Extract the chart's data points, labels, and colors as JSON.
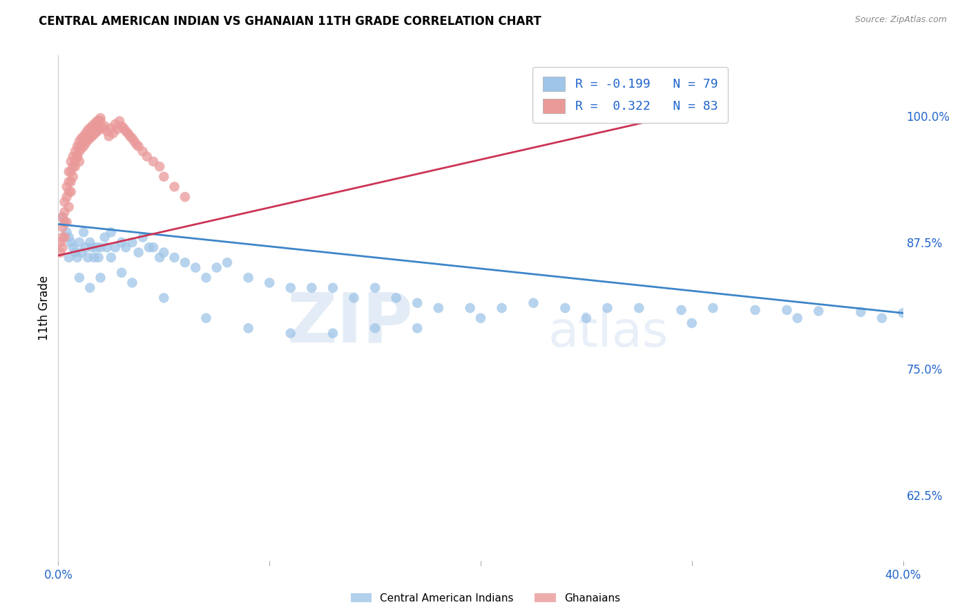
{
  "title": "CENTRAL AMERICAN INDIAN VS GHANAIAN 11TH GRADE CORRELATION CHART",
  "source": "Source: ZipAtlas.com",
  "ylabel": "11th Grade",
  "ytick_labels": [
    "62.5%",
    "75.0%",
    "87.5%",
    "100.0%"
  ],
  "ytick_values": [
    0.625,
    0.75,
    0.875,
    1.0
  ],
  "xlim": [
    0.0,
    0.4
  ],
  "ylim": [
    0.56,
    1.06
  ],
  "legend_label_blue": "Central American Indians",
  "legend_label_pink": "Ghanaians",
  "blue_color": "#9fc5e8",
  "pink_color": "#ea9999",
  "blue_line_color": "#3d85c8",
  "pink_line_color": "#cc3355",
  "watermark_zip": "ZIP",
  "watermark_atlas": "atlas",
  "blue_line_x": [
    0.0,
    0.4
  ],
  "blue_line_y": [
    0.893,
    0.805
  ],
  "pink_line_x": [
    0.0,
    0.295
  ],
  "pink_line_y": [
    0.862,
    1.002
  ],
  "blue_points_x": [
    0.002,
    0.003,
    0.004,
    0.005,
    0.006,
    0.007,
    0.008,
    0.009,
    0.01,
    0.011,
    0.012,
    0.013,
    0.014,
    0.015,
    0.016,
    0.017,
    0.018,
    0.019,
    0.02,
    0.022,
    0.023,
    0.025,
    0.027,
    0.03,
    0.032,
    0.035,
    0.038,
    0.04,
    0.043,
    0.045,
    0.048,
    0.05,
    0.055,
    0.06,
    0.065,
    0.07,
    0.075,
    0.08,
    0.09,
    0.1,
    0.11,
    0.12,
    0.13,
    0.14,
    0.15,
    0.16,
    0.17,
    0.18,
    0.195,
    0.21,
    0.225,
    0.24,
    0.26,
    0.275,
    0.295,
    0.31,
    0.33,
    0.345,
    0.36,
    0.38,
    0.4,
    0.005,
    0.01,
    0.015,
    0.02,
    0.025,
    0.03,
    0.035,
    0.05,
    0.07,
    0.09,
    0.11,
    0.13,
    0.15,
    0.17,
    0.2,
    0.25,
    0.3,
    0.35,
    0.39
  ],
  "blue_points_y": [
    0.9,
    0.895,
    0.885,
    0.88,
    0.875,
    0.87,
    0.865,
    0.86,
    0.875,
    0.865,
    0.885,
    0.87,
    0.86,
    0.875,
    0.87,
    0.86,
    0.87,
    0.86,
    0.87,
    0.88,
    0.87,
    0.885,
    0.87,
    0.875,
    0.87,
    0.875,
    0.865,
    0.88,
    0.87,
    0.87,
    0.86,
    0.865,
    0.86,
    0.855,
    0.85,
    0.84,
    0.85,
    0.855,
    0.84,
    0.835,
    0.83,
    0.83,
    0.83,
    0.82,
    0.83,
    0.82,
    0.815,
    0.81,
    0.81,
    0.81,
    0.815,
    0.81,
    0.81,
    0.81,
    0.808,
    0.81,
    0.808,
    0.808,
    0.807,
    0.806,
    0.805,
    0.86,
    0.84,
    0.83,
    0.84,
    0.86,
    0.845,
    0.835,
    0.82,
    0.8,
    0.79,
    0.785,
    0.785,
    0.79,
    0.79,
    0.8,
    0.8,
    0.795,
    0.8,
    0.8
  ],
  "pink_points_x": [
    0.001,
    0.001,
    0.002,
    0.002,
    0.002,
    0.003,
    0.003,
    0.003,
    0.004,
    0.004,
    0.005,
    0.005,
    0.005,
    0.006,
    0.006,
    0.006,
    0.007,
    0.007,
    0.008,
    0.008,
    0.009,
    0.009,
    0.01,
    0.01,
    0.01,
    0.011,
    0.011,
    0.012,
    0.012,
    0.013,
    0.013,
    0.014,
    0.014,
    0.015,
    0.015,
    0.016,
    0.016,
    0.017,
    0.017,
    0.018,
    0.018,
    0.019,
    0.019,
    0.02,
    0.021,
    0.022,
    0.023,
    0.024,
    0.025,
    0.026,
    0.027,
    0.028,
    0.029,
    0.03,
    0.031,
    0.032,
    0.033,
    0.034,
    0.035,
    0.036,
    0.037,
    0.038,
    0.04,
    0.042,
    0.045,
    0.048,
    0.05,
    0.055,
    0.06,
    0.002,
    0.003,
    0.004,
    0.005,
    0.006,
    0.007,
    0.008,
    0.009,
    0.01,
    0.012,
    0.014,
    0.016,
    0.018,
    0.02
  ],
  "pink_points_y": [
    0.875,
    0.865,
    0.9,
    0.89,
    0.88,
    0.915,
    0.905,
    0.895,
    0.93,
    0.92,
    0.945,
    0.935,
    0.925,
    0.955,
    0.945,
    0.935,
    0.96,
    0.95,
    0.965,
    0.955,
    0.97,
    0.96,
    0.975,
    0.965,
    0.955,
    0.978,
    0.968,
    0.98,
    0.97,
    0.983,
    0.973,
    0.986,
    0.976,
    0.988,
    0.978,
    0.99,
    0.98,
    0.992,
    0.982,
    0.994,
    0.984,
    0.996,
    0.986,
    0.998,
    0.988,
    0.99,
    0.985,
    0.98,
    0.988,
    0.983,
    0.992,
    0.987,
    0.995,
    0.99,
    0.988,
    0.985,
    0.983,
    0.98,
    0.978,
    0.975,
    0.972,
    0.97,
    0.965,
    0.96,
    0.955,
    0.95,
    0.94,
    0.93,
    0.92,
    0.87,
    0.88,
    0.895,
    0.91,
    0.925,
    0.94,
    0.95,
    0.96,
    0.97,
    0.975,
    0.98,
    0.985,
    0.99,
    0.995
  ]
}
